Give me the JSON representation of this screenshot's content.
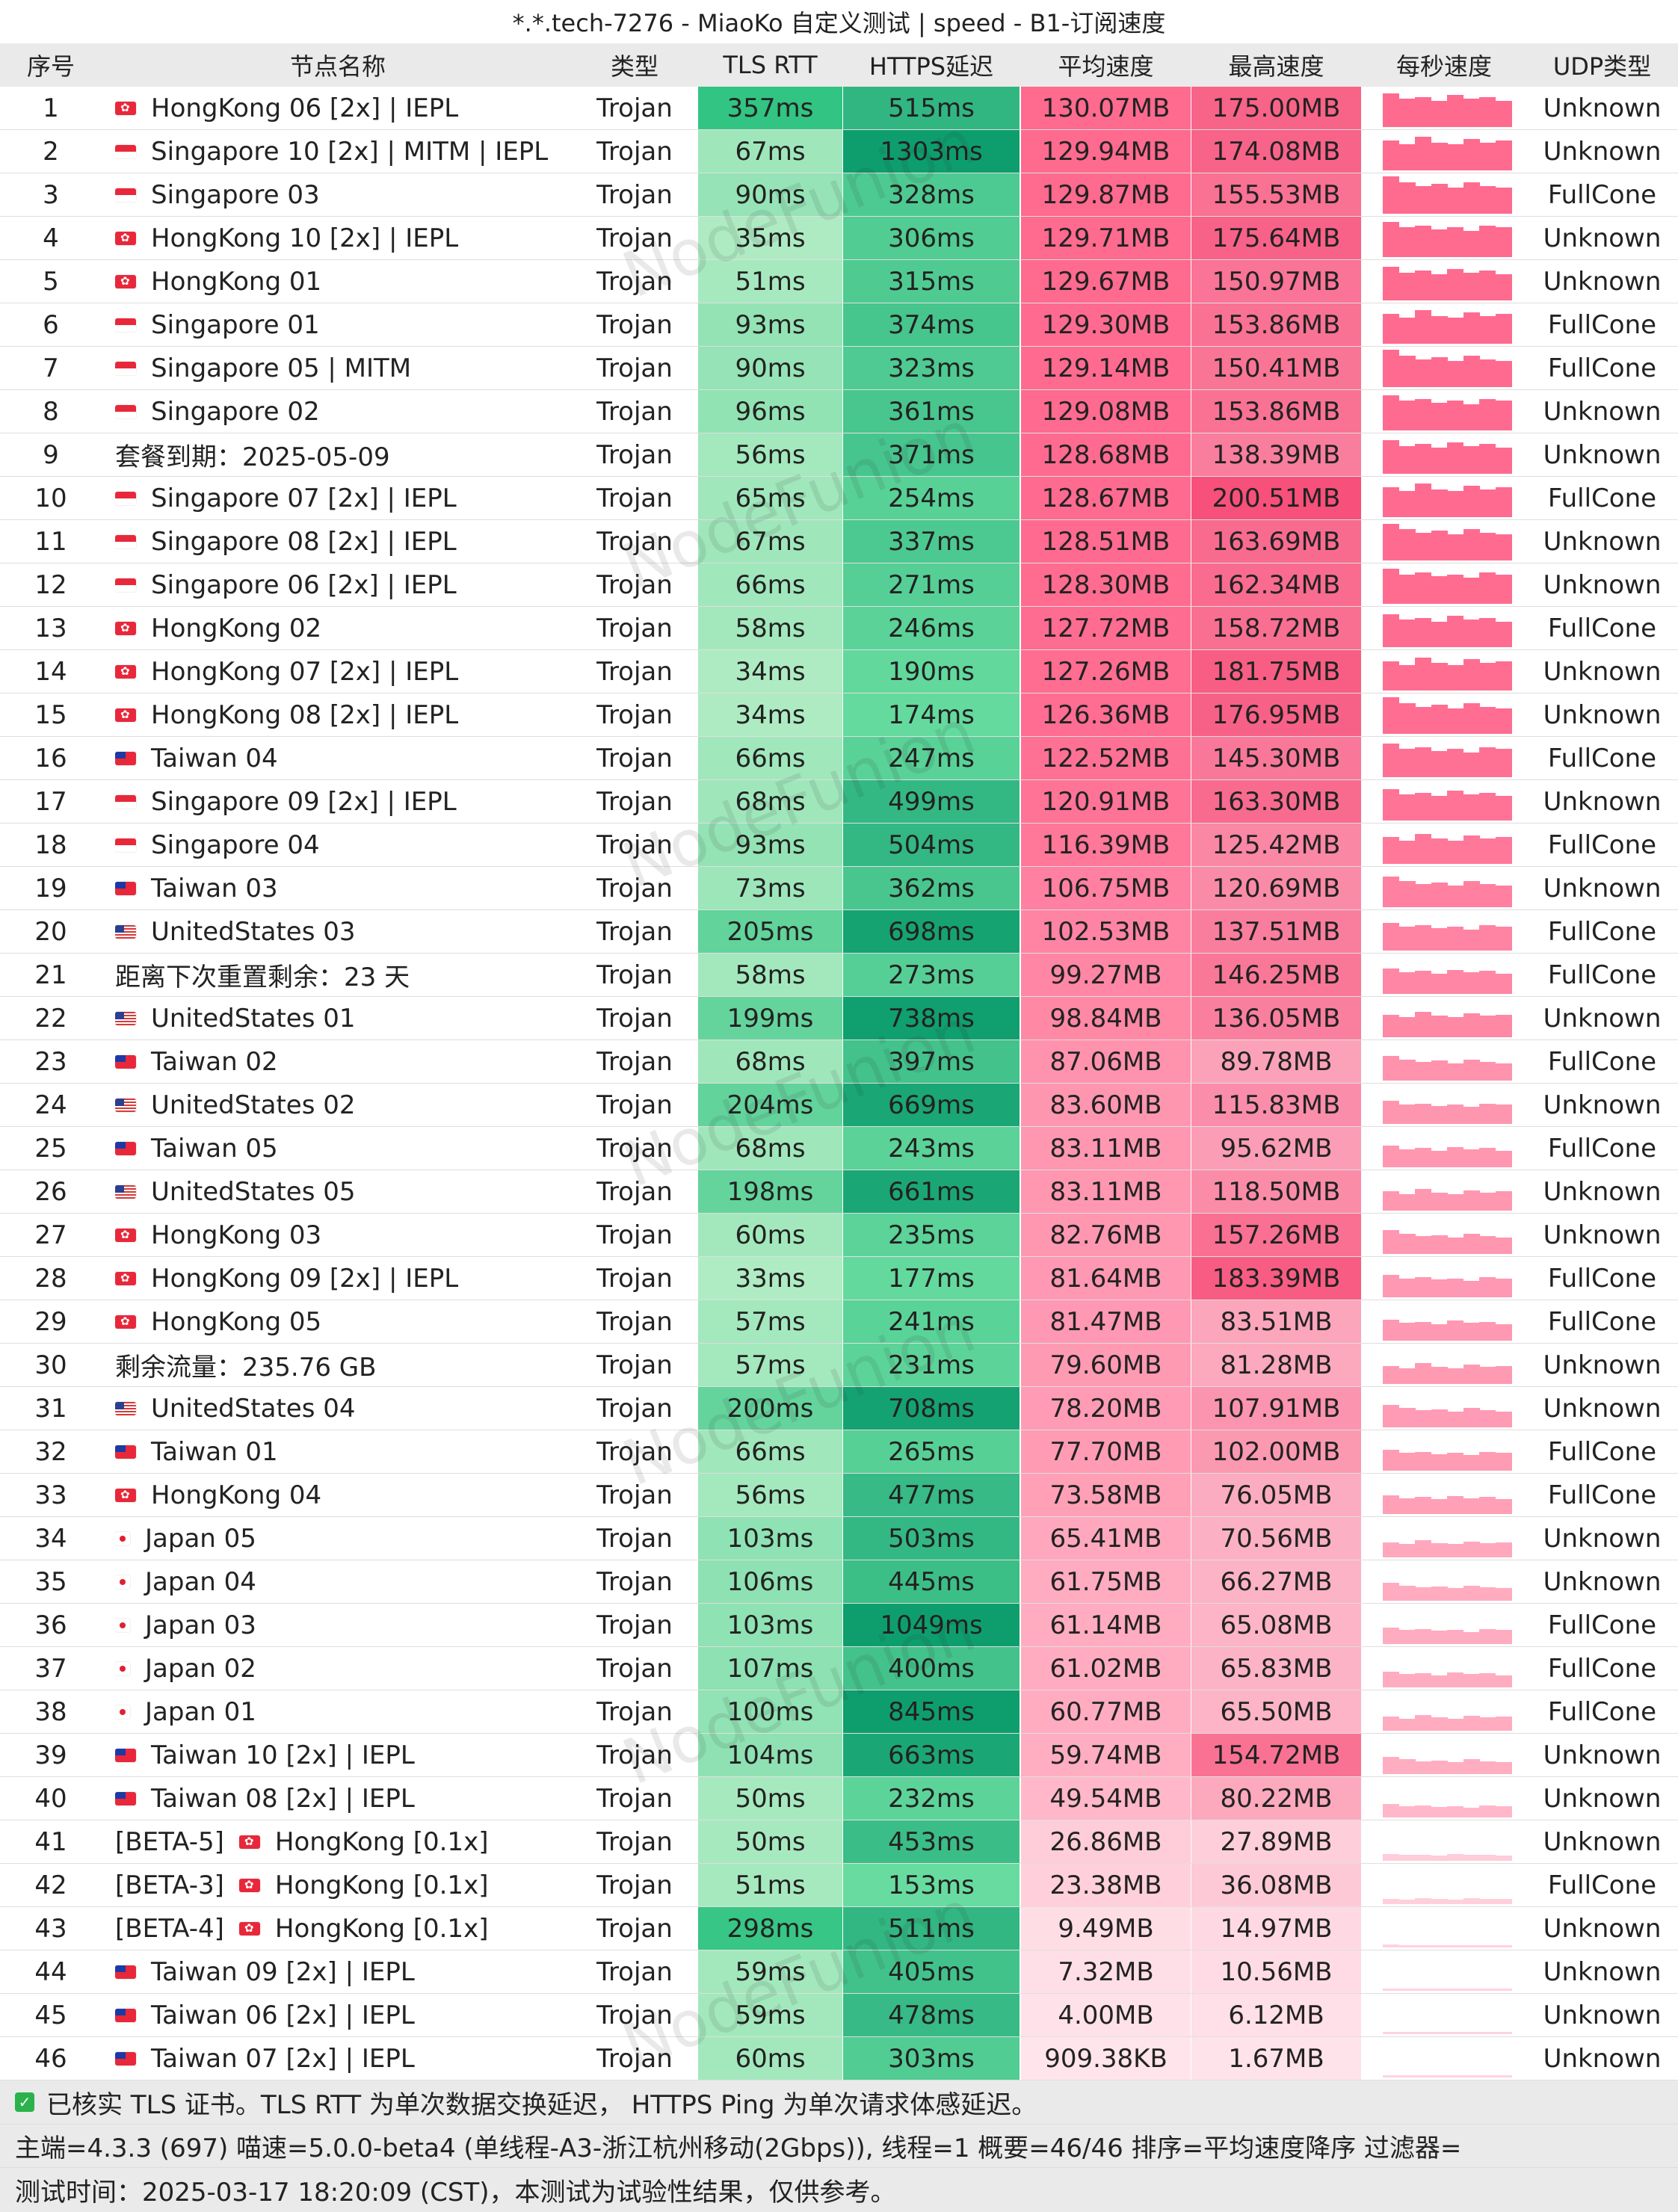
{
  "title": "*.*.tech-7276 - MiaoKo 自定义测试 | speed - B1-订阅速度",
  "headers": [
    "序号",
    "节点名称",
    "类型",
    "TLS RTT",
    "HTTPS延迟",
    "平均速度",
    "最高速度",
    "每秒速度",
    "UDP类型"
  ],
  "watermark_text": "NodeFunion",
  "colors": {
    "header_bg": "#eaeaea",
    "tls_good": "#9ee3b3",
    "https_dark": "#13a170",
    "avg_speed": "#ff6f92",
    "max_speed": "#fa5a80"
  },
  "rows": [
    {
      "idx": "1",
      "flag": "hk",
      "name": "HongKong 06 [2x] | IEPL",
      "type": "Trojan",
      "tls": "357ms",
      "https": "515ms",
      "avg": "130.07MB",
      "max": "175.00MB",
      "udp": "Unknown"
    },
    {
      "idx": "2",
      "flag": "sg",
      "name": "Singapore 10 [2x] | MITM | IEPL",
      "type": "Trojan",
      "tls": "67ms",
      "https": "1303ms",
      "avg": "129.94MB",
      "max": "174.08MB",
      "udp": "Unknown"
    },
    {
      "idx": "3",
      "flag": "sg",
      "name": "Singapore 03",
      "type": "Trojan",
      "tls": "90ms",
      "https": "328ms",
      "avg": "129.87MB",
      "max": "155.53MB",
      "udp": "FullCone"
    },
    {
      "idx": "4",
      "flag": "hk",
      "name": "HongKong 10 [2x] | IEPL",
      "type": "Trojan",
      "tls": "35ms",
      "https": "306ms",
      "avg": "129.71MB",
      "max": "175.64MB",
      "udp": "Unknown"
    },
    {
      "idx": "5",
      "flag": "hk",
      "name": "HongKong 01",
      "type": "Trojan",
      "tls": "51ms",
      "https": "315ms",
      "avg": "129.67MB",
      "max": "150.97MB",
      "udp": "Unknown"
    },
    {
      "idx": "6",
      "flag": "sg",
      "name": "Singapore 01",
      "type": "Trojan",
      "tls": "93ms",
      "https": "374ms",
      "avg": "129.30MB",
      "max": "153.86MB",
      "udp": "FullCone"
    },
    {
      "idx": "7",
      "flag": "sg",
      "name": "Singapore 05 | MITM",
      "type": "Trojan",
      "tls": "90ms",
      "https": "323ms",
      "avg": "129.14MB",
      "max": "150.41MB",
      "udp": "FullCone"
    },
    {
      "idx": "8",
      "flag": "sg",
      "name": "Singapore 02",
      "type": "Trojan",
      "tls": "96ms",
      "https": "361ms",
      "avg": "129.08MB",
      "max": "153.86MB",
      "udp": "Unknown"
    },
    {
      "idx": "9",
      "flag": "",
      "name": "套餐到期：2025-05-09",
      "type": "Trojan",
      "tls": "56ms",
      "https": "371ms",
      "avg": "128.68MB",
      "max": "138.39MB",
      "udp": "Unknown"
    },
    {
      "idx": "10",
      "flag": "sg",
      "name": "Singapore 07 [2x] | IEPL",
      "type": "Trojan",
      "tls": "65ms",
      "https": "254ms",
      "avg": "128.67MB",
      "max": "200.51MB",
      "udp": "FullCone"
    },
    {
      "idx": "11",
      "flag": "sg",
      "name": "Singapore 08 [2x] | IEPL",
      "type": "Trojan",
      "tls": "67ms",
      "https": "337ms",
      "avg": "128.51MB",
      "max": "163.69MB",
      "udp": "Unknown"
    },
    {
      "idx": "12",
      "flag": "sg",
      "name": "Singapore 06 [2x] | IEPL",
      "type": "Trojan",
      "tls": "66ms",
      "https": "271ms",
      "avg": "128.30MB",
      "max": "162.34MB",
      "udp": "Unknown"
    },
    {
      "idx": "13",
      "flag": "hk",
      "name": "HongKong 02",
      "type": "Trojan",
      "tls": "58ms",
      "https": "246ms",
      "avg": "127.72MB",
      "max": "158.72MB",
      "udp": "FullCone"
    },
    {
      "idx": "14",
      "flag": "hk",
      "name": "HongKong 07 [2x] | IEPL",
      "type": "Trojan",
      "tls": "34ms",
      "https": "190ms",
      "avg": "127.26MB",
      "max": "181.75MB",
      "udp": "Unknown"
    },
    {
      "idx": "15",
      "flag": "hk",
      "name": "HongKong 08 [2x] | IEPL",
      "type": "Trojan",
      "tls": "34ms",
      "https": "174ms",
      "avg": "126.36MB",
      "max": "176.95MB",
      "udp": "Unknown"
    },
    {
      "idx": "16",
      "flag": "tw",
      "name": "Taiwan 04",
      "type": "Trojan",
      "tls": "66ms",
      "https": "247ms",
      "avg": "122.52MB",
      "max": "145.30MB",
      "udp": "FullCone"
    },
    {
      "idx": "17",
      "flag": "sg",
      "name": "Singapore 09 [2x] | IEPL",
      "type": "Trojan",
      "tls": "68ms",
      "https": "499ms",
      "avg": "120.91MB",
      "max": "163.30MB",
      "udp": "Unknown"
    },
    {
      "idx": "18",
      "flag": "sg",
      "name": "Singapore 04",
      "type": "Trojan",
      "tls": "93ms",
      "https": "504ms",
      "avg": "116.39MB",
      "max": "125.42MB",
      "udp": "FullCone"
    },
    {
      "idx": "19",
      "flag": "tw",
      "name": "Taiwan 03",
      "type": "Trojan",
      "tls": "73ms",
      "https": "362ms",
      "avg": "106.75MB",
      "max": "120.69MB",
      "udp": "Unknown"
    },
    {
      "idx": "20",
      "flag": "us",
      "name": "UnitedStates 03",
      "type": "Trojan",
      "tls": "205ms",
      "https": "698ms",
      "avg": "102.53MB",
      "max": "137.51MB",
      "udp": "FullCone"
    },
    {
      "idx": "21",
      "flag": "",
      "name": "距离下次重置剩余：23 天",
      "type": "Trojan",
      "tls": "58ms",
      "https": "273ms",
      "avg": "99.27MB",
      "max": "146.25MB",
      "udp": "FullCone"
    },
    {
      "idx": "22",
      "flag": "us",
      "name": "UnitedStates 01",
      "type": "Trojan",
      "tls": "199ms",
      "https": "738ms",
      "avg": "98.84MB",
      "max": "136.05MB",
      "udp": "Unknown"
    },
    {
      "idx": "23",
      "flag": "tw",
      "name": "Taiwan 02",
      "type": "Trojan",
      "tls": "68ms",
      "https": "397ms",
      "avg": "87.06MB",
      "max": "89.78MB",
      "udp": "FullCone"
    },
    {
      "idx": "24",
      "flag": "us",
      "name": "UnitedStates 02",
      "type": "Trojan",
      "tls": "204ms",
      "https": "669ms",
      "avg": "83.60MB",
      "max": "115.83MB",
      "udp": "Unknown"
    },
    {
      "idx": "25",
      "flag": "tw",
      "name": "Taiwan 05",
      "type": "Trojan",
      "tls": "68ms",
      "https": "243ms",
      "avg": "83.11MB",
      "max": "95.62MB",
      "udp": "FullCone"
    },
    {
      "idx": "26",
      "flag": "us",
      "name": "UnitedStates 05",
      "type": "Trojan",
      "tls": "198ms",
      "https": "661ms",
      "avg": "83.11MB",
      "max": "118.50MB",
      "udp": "Unknown"
    },
    {
      "idx": "27",
      "flag": "hk",
      "name": "HongKong 03",
      "type": "Trojan",
      "tls": "60ms",
      "https": "235ms",
      "avg": "82.76MB",
      "max": "157.26MB",
      "udp": "Unknown"
    },
    {
      "idx": "28",
      "flag": "hk",
      "name": "HongKong 09 [2x] | IEPL",
      "type": "Trojan",
      "tls": "33ms",
      "https": "177ms",
      "avg": "81.64MB",
      "max": "183.39MB",
      "udp": "FullCone"
    },
    {
      "idx": "29",
      "flag": "hk",
      "name": "HongKong 05",
      "type": "Trojan",
      "tls": "57ms",
      "https": "241ms",
      "avg": "81.47MB",
      "max": "83.51MB",
      "udp": "FullCone"
    },
    {
      "idx": "30",
      "flag": "",
      "name": "剩余流量：235.76 GB",
      "type": "Trojan",
      "tls": "57ms",
      "https": "231ms",
      "avg": "79.60MB",
      "max": "81.28MB",
      "udp": "Unknown"
    },
    {
      "idx": "31",
      "flag": "us",
      "name": "UnitedStates 04",
      "type": "Trojan",
      "tls": "200ms",
      "https": "708ms",
      "avg": "78.20MB",
      "max": "107.91MB",
      "udp": "Unknown"
    },
    {
      "idx": "32",
      "flag": "tw",
      "name": "Taiwan 01",
      "type": "Trojan",
      "tls": "66ms",
      "https": "265ms",
      "avg": "77.70MB",
      "max": "102.00MB",
      "udp": "FullCone"
    },
    {
      "idx": "33",
      "flag": "hk",
      "name": "HongKong 04",
      "type": "Trojan",
      "tls": "56ms",
      "https": "477ms",
      "avg": "73.58MB",
      "max": "76.05MB",
      "udp": "FullCone"
    },
    {
      "idx": "34",
      "flag": "jp",
      "name": "Japan 05",
      "type": "Trojan",
      "tls": "103ms",
      "https": "503ms",
      "avg": "65.41MB",
      "max": "70.56MB",
      "udp": "Unknown"
    },
    {
      "idx": "35",
      "flag": "jp",
      "name": "Japan 04",
      "type": "Trojan",
      "tls": "106ms",
      "https": "445ms",
      "avg": "61.75MB",
      "max": "66.27MB",
      "udp": "Unknown"
    },
    {
      "idx": "36",
      "flag": "jp",
      "name": "Japan 03",
      "type": "Trojan",
      "tls": "103ms",
      "https": "1049ms",
      "avg": "61.14MB",
      "max": "65.08MB",
      "udp": "FullCone"
    },
    {
      "idx": "37",
      "flag": "jp",
      "name": "Japan 02",
      "type": "Trojan",
      "tls": "107ms",
      "https": "400ms",
      "avg": "61.02MB",
      "max": "65.83MB",
      "udp": "FullCone"
    },
    {
      "idx": "38",
      "flag": "jp",
      "name": "Japan 01",
      "type": "Trojan",
      "tls": "100ms",
      "https": "845ms",
      "avg": "60.77MB",
      "max": "65.50MB",
      "udp": "FullCone"
    },
    {
      "idx": "39",
      "flag": "tw",
      "name": "Taiwan 10 [2x] | IEPL",
      "type": "Trojan",
      "tls": "104ms",
      "https": "663ms",
      "avg": "59.74MB",
      "max": "154.72MB",
      "udp": "Unknown"
    },
    {
      "idx": "40",
      "flag": "tw",
      "name": "Taiwan 08 [2x] | IEPL",
      "type": "Trojan",
      "tls": "50ms",
      "https": "232ms",
      "avg": "49.54MB",
      "max": "80.22MB",
      "udp": "Unknown"
    },
    {
      "idx": "41",
      "flag": "hk",
      "prefix": "[BETA-5]",
      "name": "HongKong [0.1x]",
      "type": "Trojan",
      "tls": "50ms",
      "https": "453ms",
      "avg": "26.86MB",
      "max": "27.89MB",
      "udp": "Unknown"
    },
    {
      "idx": "42",
      "flag": "hk",
      "prefix": "[BETA-3]",
      "name": "HongKong [0.1x]",
      "type": "Trojan",
      "tls": "51ms",
      "https": "153ms",
      "avg": "23.38MB",
      "max": "36.08MB",
      "udp": "FullCone"
    },
    {
      "idx": "43",
      "flag": "hk",
      "prefix": "[BETA-4]",
      "name": "HongKong [0.1x]",
      "type": "Trojan",
      "tls": "298ms",
      "https": "511ms",
      "avg": "9.49MB",
      "max": "14.97MB",
      "udp": "Unknown"
    },
    {
      "idx": "44",
      "flag": "tw",
      "name": "Taiwan 09 [2x] | IEPL",
      "type": "Trojan",
      "tls": "59ms",
      "https": "405ms",
      "avg": "7.32MB",
      "max": "10.56MB",
      "udp": "Unknown"
    },
    {
      "idx": "45",
      "flag": "tw",
      "name": "Taiwan 06 [2x] | IEPL",
      "type": "Trojan",
      "tls": "59ms",
      "https": "478ms",
      "avg": "4.00MB",
      "max": "6.12MB",
      "udp": "Unknown"
    },
    {
      "idx": "46",
      "flag": "tw",
      "name": "Taiwan 07 [2x] | IEPL",
      "type": "Trojan",
      "tls": "60ms",
      "https": "303ms",
      "avg": "909.38KB",
      "max": "1.67MB",
      "udp": "Unknown"
    }
  ],
  "footer": {
    "note": "已核实 TLS 证书。TLS RTT 为单次数据交换延迟， HTTPS Ping 为单次请求体感延迟。",
    "info": "主端=4.3.3 (697) 喵速=5.0.0-beta4 (单线程-A3-浙江杭州移动(2Gbps)), 线程=1 概要=46/46 排序=平均速度降序 过滤器=",
    "time": "测试时间：2025-03-17 18:20:09 (CST)，本测试为试验性结果，仅供参考。"
  }
}
